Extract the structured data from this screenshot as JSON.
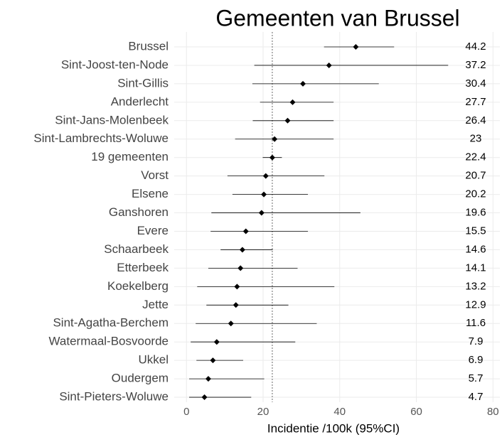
{
  "chart_data": {
    "type": "forest",
    "title": "Gemeenten van Brussel",
    "x_label": "Incidentie /100k (95%CI)",
    "categories": [
      "Brussel",
      "Sint-Joost-ten-Node",
      "Sint-Gillis",
      "Anderlecht",
      "Sint-Jans-Molenbeek",
      "Sint-Lambrechts-Woluwe",
      "19 gemeenten",
      "Vorst",
      "Elsene",
      "Ganshoren",
      "Evere",
      "Schaarbeek",
      "Etterbeek",
      "Koekelberg",
      "Jette",
      "Sint-Agatha-Berchem",
      "Watermaal-Bosvoorde",
      "Ukkel",
      "Oudergem",
      "Sint-Pieters-Woluwe"
    ],
    "values": [
      44.2,
      37.2,
      30.4,
      27.7,
      26.4,
      23,
      22.4,
      20.7,
      20.2,
      19.6,
      15.5,
      14.6,
      14.1,
      13.2,
      12.9,
      11.6,
      7.9,
      6.9,
      5.7,
      4.7
    ],
    "lower": [
      35.9,
      17.7,
      17.2,
      19.2,
      17.3,
      12.7,
      19.9,
      10.7,
      12,
      6.5,
      6.3,
      8.9,
      5.7,
      2.8,
      5.2,
      2.4,
      1.1,
      2.6,
      0.7,
      0.7
    ],
    "upper": [
      54.2,
      68.3,
      50.2,
      38.4,
      38.4,
      38.4,
      24.9,
      36,
      31.7,
      45.4,
      31.7,
      22.5,
      29,
      38.6,
      26.6,
      34,
      28.4,
      14.8,
      20.3,
      16.9
    ],
    "reference_line": 22.4,
    "xlim": [
      -3.2,
      81.8
    ],
    "xticks": [
      0,
      20,
      40,
      60,
      80
    ],
    "grid": true,
    "color": "#000000"
  }
}
